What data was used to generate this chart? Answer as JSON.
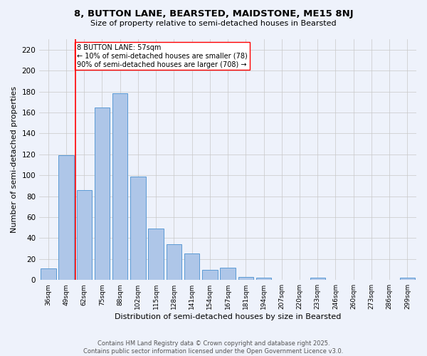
{
  "title_line1": "8, BUTTON LANE, BEARSTED, MAIDSTONE, ME15 8NJ",
  "title_line2": "Size of property relative to semi-detached houses in Bearsted",
  "xlabel": "Distribution of semi-detached houses by size in Bearsted",
  "ylabel": "Number of semi-detached properties",
  "categories": [
    "36sqm",
    "49sqm",
    "62sqm",
    "75sqm",
    "88sqm",
    "102sqm",
    "115sqm",
    "128sqm",
    "141sqm",
    "154sqm",
    "167sqm",
    "181sqm",
    "194sqm",
    "207sqm",
    "220sqm",
    "233sqm",
    "246sqm",
    "260sqm",
    "273sqm",
    "286sqm",
    "299sqm"
  ],
  "values": [
    11,
    119,
    86,
    165,
    178,
    99,
    49,
    34,
    25,
    10,
    12,
    3,
    2,
    0,
    0,
    2,
    0,
    0,
    0,
    0,
    2
  ],
  "bar_color": "#aec6e8",
  "bar_edge_color": "#5b9bd5",
  "background_color": "#eef2fb",
  "red_line_x": 1.5,
  "annotation_text": "8 BUTTON LANE: 57sqm\n← 10% of semi-detached houses are smaller (78)\n90% of semi-detached houses are larger (708) →",
  "annotation_box_color": "white",
  "annotation_box_edge_color": "red",
  "ylim": [
    0,
    230
  ],
  "yticks": [
    0,
    20,
    40,
    60,
    80,
    100,
    120,
    140,
    160,
    180,
    200,
    220
  ],
  "footer_line1": "Contains HM Land Registry data © Crown copyright and database right 2025.",
  "footer_line2": "Contains public sector information licensed under the Open Government Licence v3.0."
}
